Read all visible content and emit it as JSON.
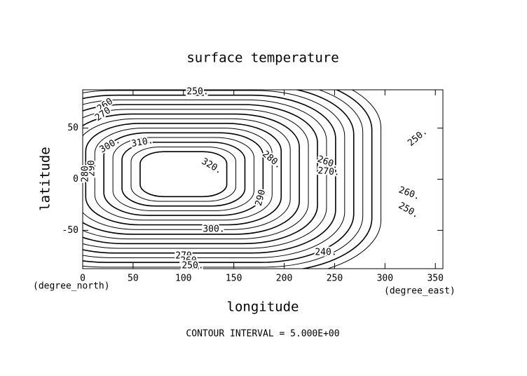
{
  "chart_data": {
    "type": "contour",
    "title": "surface temperature",
    "x_label": "longitude",
    "y_label": "latitude",
    "x_units": "(degree_east)",
    "y_units": "(degree_north)",
    "footnote": "CONTOUR INTERVAL = 5.000E+00",
    "xlim": [
      0,
      357.5
    ],
    "ylim": [
      -87.5,
      87.5
    ],
    "xticks": [
      0,
      50,
      100,
      150,
      200,
      250,
      300,
      350
    ],
    "yticks": [
      -50,
      0,
      50
    ],
    "levels": [
      235,
      240,
      245,
      250,
      255,
      260,
      265,
      270,
      275,
      280,
      285,
      290,
      295,
      300,
      305,
      310,
      315,
      320
    ],
    "contour_labels": [
      {
        "value": 250,
        "label": "250."
      },
      {
        "value": 260,
        "label": "260"
      },
      {
        "value": 270,
        "label": "270"
      },
      {
        "value": 300,
        "label": "300."
      },
      {
        "value": 310,
        "label": "310."
      },
      {
        "value": 320,
        "label": "320."
      },
      {
        "value": 290,
        "label": "290"
      },
      {
        "value": 280,
        "label": "280"
      },
      {
        "value": 280,
        "label": "280."
      },
      {
        "value": 290,
        "label": "290"
      },
      {
        "value": 260,
        "label": "260."
      },
      {
        "value": 270,
        "label": "270."
      },
      {
        "value": 250,
        "label": "250."
      },
      {
        "value": 260,
        "label": "260."
      },
      {
        "value": 250,
        "label": "250."
      },
      {
        "value": 300,
        "label": "300."
      },
      {
        "value": 240,
        "label": "240."
      },
      {
        "value": 270,
        "label": "270"
      },
      {
        "value": 260,
        "label": "260"
      },
      {
        "value": 250,
        "label": "250."
      }
    ],
    "color": "#000000"
  }
}
